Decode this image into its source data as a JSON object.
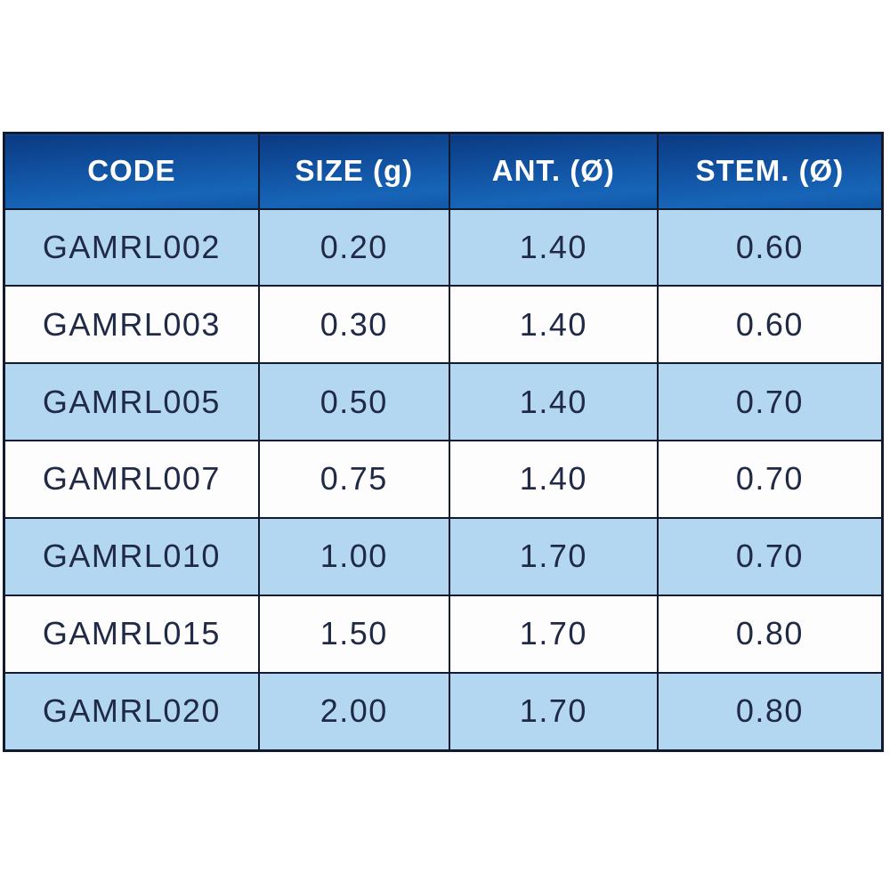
{
  "colors": {
    "header_blue_top": "#0a3a82",
    "header_blue_bottom": "#1765b8",
    "row_alt_blue": "#b3d7f1",
    "row_white": "#fdfdfd",
    "border_navy": "#121a30",
    "header_text": "#ffffff",
    "body_text": "#202945",
    "page_background": "#ffffff"
  },
  "chart_data": {
    "type": "table",
    "title": "",
    "headers": [
      "CODE",
      "SIZE (g)",
      "ANT. (Ø)",
      "STEM. (Ø)"
    ],
    "rows": [
      [
        "GAMRL002",
        "0.20",
        "1.40",
        "0.60"
      ],
      [
        "GAMRL003",
        "0.30",
        "1.40",
        "0.60"
      ],
      [
        "GAMRL005",
        "0.50",
        "1.40",
        "0.70"
      ],
      [
        "GAMRL007",
        "0.75",
        "1.40",
        "0.70"
      ],
      [
        "GAMRL010",
        "1.00",
        "1.70",
        "0.70"
      ],
      [
        "GAMRL015",
        "1.50",
        "1.70",
        "0.80"
      ],
      [
        "GAMRL020",
        "2.00",
        "1.70",
        "0.80"
      ]
    ],
    "layout_hints": {
      "header_style": "blue gradient, white bold text",
      "row_striping": "odd rows light blue, even rows white",
      "alignment": "all cells centered"
    }
  }
}
